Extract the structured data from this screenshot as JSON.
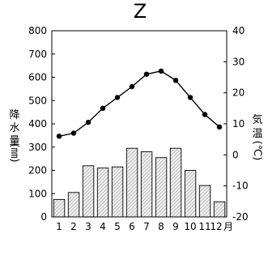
{
  "chart_data": {
    "type": "bar+line",
    "title": "Z",
    "categories": [
      "1",
      "2",
      "3",
      "4",
      "5",
      "6",
      "7",
      "8",
      "9",
      "10",
      "11",
      "12"
    ],
    "month_unit": "月",
    "series": [
      {
        "name": "降水量",
        "type": "bar",
        "axis": "left",
        "values": [
          75,
          105,
          220,
          210,
          215,
          295,
          280,
          255,
          295,
          200,
          135,
          65
        ]
      },
      {
        "name": "気温",
        "type": "line",
        "axis": "right",
        "values": [
          6,
          7,
          10.5,
          15,
          18.5,
          22,
          26,
          27,
          24,
          18.5,
          13,
          9
        ]
      }
    ],
    "left_axis": {
      "label_chars": [
        "降",
        "水",
        "量"
      ],
      "unit": "(㎜)",
      "ylim": [
        0,
        800
      ],
      "ticks": [
        "0",
        "100",
        "200",
        "300",
        "400",
        "500",
        "600",
        "700",
        "800"
      ]
    },
    "right_axis": {
      "label_chars": [
        "気",
        "温"
      ],
      "unit": "(℃)",
      "ylim": [
        -20,
        40
      ],
      "ticks": [
        "-20",
        "-10",
        "0",
        "10",
        "20",
        "30",
        "40"
      ]
    },
    "bar_fill": "#e9e9e9",
    "line_color": "#000000"
  }
}
